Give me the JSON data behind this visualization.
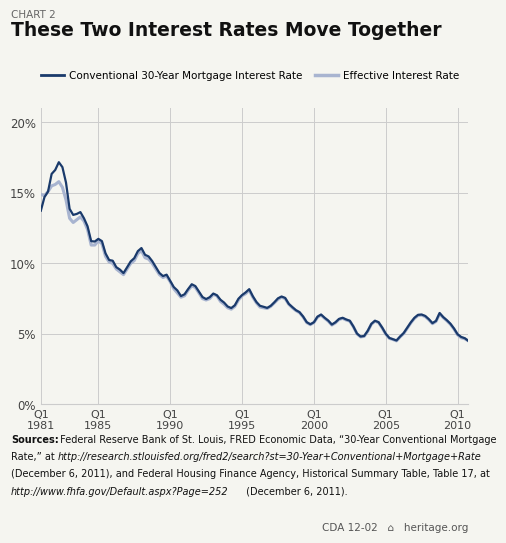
{
  "chart_label": "CHART 2",
  "title": "These Two Interest Rates Move Together",
  "legend1": "Conventional 30-Year Mortgage Interest Rate",
  "legend2": "Effective Interest Rate",
  "line1_color": "#1a3a6b",
  "line2_color": "#a8b4d0",
  "background_color": "#f5f5f0",
  "grid_color": "#cccccc",
  "yticks": [
    0,
    5,
    10,
    15,
    20
  ],
  "ytick_labels": [
    "0%",
    "5%",
    "10%",
    "15%",
    "20%"
  ],
  "ylim": [
    0,
    21
  ],
  "xtick_years": [
    1981,
    1985,
    1990,
    1995,
    2000,
    2005,
    2010
  ],
  "sources_bold": "Sources:",
  "sources_normal": " Federal Reserve Bank of St. Louis, FRED Economic Data, “30-Year Conventional Mortgage Rate,” at ",
  "sources_italic": "http://research.stlouisfed.org/fred2/search?st=30-Year+Conventional+Mortgage+Rate",
  "sources_normal2": " (December 6, 2011), and Federal Housing Finance Agency, Historical Summary Table, Table 17, at ",
  "sources_italic2": "http://www.fhfa.gov/Default.aspx?Page=252",
  "sources_normal3": " (December 6, 2011).",
  "cda_label": "CDA 12-02",
  "heritage_label": "heritage.org",
  "conv_mortgage_rate": [
    13.74,
    14.7,
    15.1,
    16.35,
    16.63,
    17.18,
    16.83,
    15.73,
    13.87,
    13.44,
    13.51,
    13.64,
    13.2,
    12.63,
    11.58,
    11.55,
    11.74,
    11.58,
    10.71,
    10.24,
    10.19,
    9.73,
    9.56,
    9.31,
    9.72,
    10.14,
    10.37,
    10.87,
    11.09,
    10.61,
    10.49,
    10.16,
    9.74,
    9.32,
    9.1,
    9.2,
    8.76,
    8.32,
    8.08,
    7.68,
    7.81,
    8.18,
    8.52,
    8.39,
    8.0,
    7.61,
    7.47,
    7.6,
    7.86,
    7.74,
    7.42,
    7.22,
    6.94,
    6.83,
    7.03,
    7.49,
    7.75,
    7.94,
    8.17,
    7.67,
    7.26,
    6.99,
    6.92,
    6.84,
    6.99,
    7.24,
    7.52,
    7.65,
    7.55,
    7.13,
    6.9,
    6.68,
    6.54,
    6.23,
    5.83,
    5.68,
    5.82,
    6.22,
    6.37,
    6.14,
    5.94,
    5.66,
    5.82,
    6.06,
    6.14,
    6.02,
    5.93,
    5.52,
    5.02,
    4.81,
    4.85,
    5.22,
    5.71,
    5.93,
    5.83,
    5.45,
    5.01,
    4.71,
    4.62,
    4.53,
    4.81,
    5.06,
    5.44,
    5.82,
    6.14,
    6.35,
    6.37,
    6.27,
    6.04,
    5.76,
    5.92,
    6.48,
    6.19,
    5.97,
    5.72,
    5.38,
    4.97,
    4.78,
    4.69,
    4.5
  ],
  "effective_rate": [
    14.9,
    14.8,
    15.1,
    15.5,
    15.6,
    15.8,
    15.4,
    14.5,
    13.2,
    12.9,
    13.1,
    13.3,
    13.0,
    12.4,
    11.3,
    11.3,
    11.6,
    11.4,
    10.5,
    10.1,
    10.0,
    9.6,
    9.4,
    9.2,
    9.6,
    10.0,
    10.2,
    10.7,
    10.9,
    10.4,
    10.3,
    10.0,
    9.6,
    9.2,
    9.0,
    9.1,
    8.7,
    8.2,
    7.9,
    7.6,
    7.7,
    8.1,
    8.4,
    8.3,
    7.9,
    7.5,
    7.4,
    7.5,
    7.8,
    7.7,
    7.3,
    7.1,
    6.85,
    6.75,
    6.95,
    7.4,
    7.7,
    7.85,
    8.1,
    7.6,
    7.2,
    6.9,
    6.85,
    6.8,
    6.95,
    7.2,
    7.45,
    7.6,
    7.5,
    7.1,
    6.85,
    6.65,
    6.5,
    6.2,
    5.8,
    5.65,
    5.8,
    6.18,
    6.33,
    6.1,
    5.9,
    5.62,
    5.78,
    6.02,
    6.1,
    5.98,
    5.9,
    5.5,
    5.0,
    4.78,
    4.82,
    5.18,
    5.68,
    5.9,
    5.8,
    5.42,
    4.98,
    4.68,
    4.6,
    4.5,
    4.78,
    5.02,
    5.4,
    5.78,
    6.1,
    6.3,
    6.33,
    6.22,
    6.0,
    5.72,
    5.88,
    6.42,
    6.15,
    5.93,
    5.68,
    5.34,
    4.93,
    4.72,
    4.65,
    4.5
  ]
}
